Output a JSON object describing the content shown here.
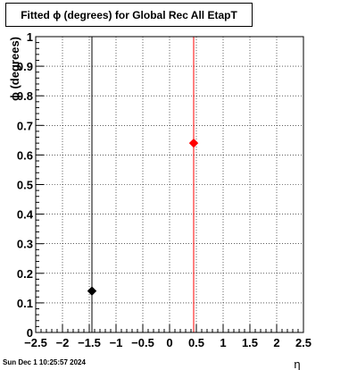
{
  "chart_data": {
    "type": "scatter",
    "title": "Fitted ϕ (degrees) for Global Rec All EtapT",
    "xlabel": "η",
    "ylabel": "ϕ (degrees)",
    "xlim": [
      -2.5,
      2.5
    ],
    "ylim": [
      0,
      1
    ],
    "xticks": [
      -2.5,
      -2,
      -1.5,
      -1,
      -0.5,
      0,
      0.5,
      1,
      1.5,
      2,
      2.5
    ],
    "xtick_labels": [
      "−2.5",
      "−2",
      "−1.5",
      "−1",
      "−0.5",
      "0",
      "0.5",
      "1",
      "1.5",
      "2",
      "2.5"
    ],
    "yticks": [
      0,
      0.1,
      0.2,
      0.3,
      0.4,
      0.5,
      0.6,
      0.7,
      0.8,
      0.9,
      1
    ],
    "ytick_labels": [
      "0",
      "0.1",
      "0.2",
      "0.3",
      "0.4",
      "0.5",
      "0.6",
      "0.7",
      "0.8",
      "0.9",
      "1"
    ],
    "grid": true,
    "series": [
      {
        "color": "#000000",
        "points": [
          {
            "x": -1.45,
            "y": 0.14
          }
        ],
        "vline_x": -1.45
      },
      {
        "color": "#ff0000",
        "points": [
          {
            "x": 0.45,
            "y": 0.64
          }
        ],
        "vline_x": 0.45
      }
    ]
  },
  "footer": {
    "timestamp": "Sun Dec  1 10:25:57 2024"
  }
}
